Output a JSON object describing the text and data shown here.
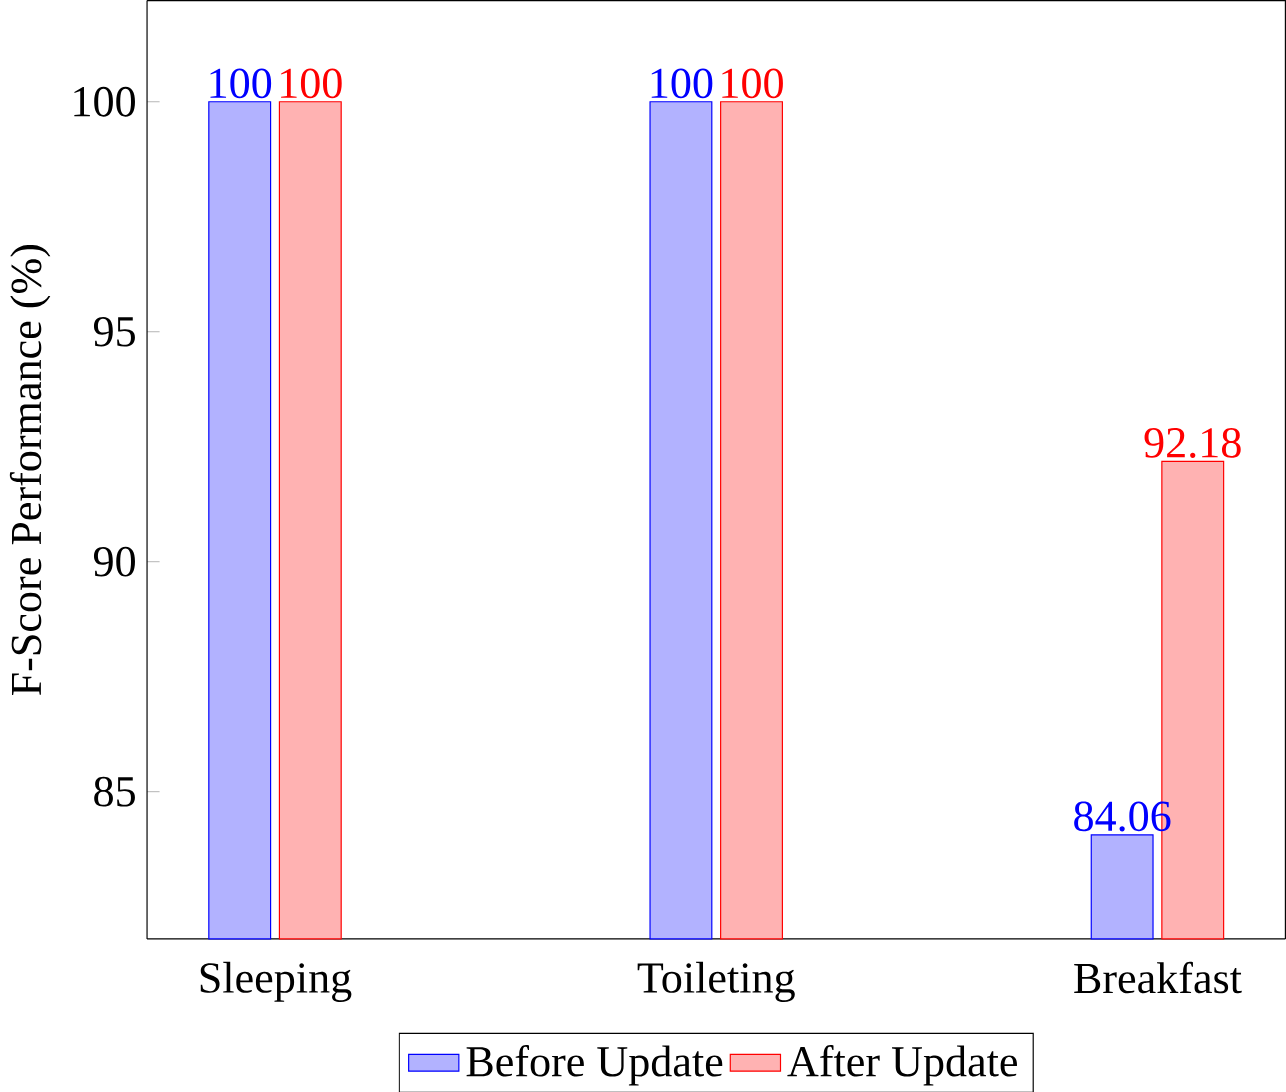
{
  "chart_data": {
    "type": "bar",
    "ylabel": "F-Score Performance (%)",
    "categories": [
      "Sleeping",
      "Toileting",
      "Breakfast"
    ],
    "series": [
      {
        "name": "Before Update",
        "color": "#0000ff",
        "values": [
          100,
          100,
          84.06
        ]
      },
      {
        "name": "After Update",
        "color": "#ff0000",
        "values": [
          100,
          100,
          92.18
        ]
      }
    ],
    "ylim": [
      81.8,
      102.2
    ],
    "yticks": [
      85,
      90,
      95,
      100
    ],
    "data_labels": true,
    "legend": "bottom",
    "grid": false
  }
}
